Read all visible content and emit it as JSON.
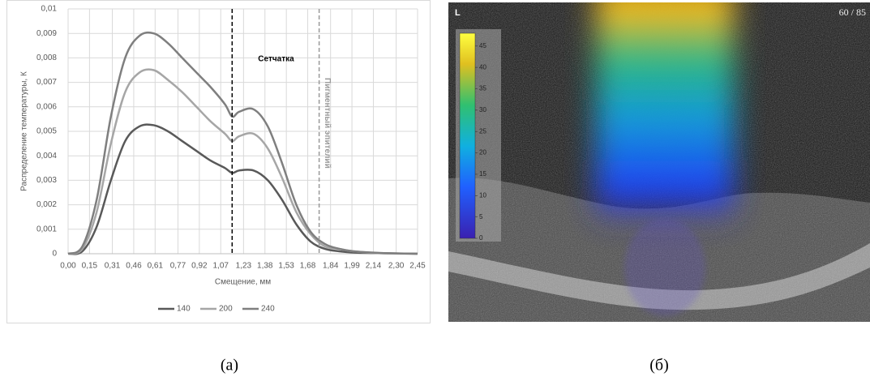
{
  "chart_data": {
    "type": "line",
    "y_label": "Распределение температуры, К",
    "x_label": "Смещение, мм",
    "x": [
      0,
      0.1,
      0.2,
      0.3,
      0.4,
      0.5,
      0.6,
      0.7,
      0.8,
      0.9,
      1.0,
      1.1,
      1.15,
      1.2,
      1.3,
      1.4,
      1.5,
      1.6,
      1.7,
      1.8,
      1.9,
      2.0,
      2.2,
      2.45
    ],
    "series": [
      {
        "name": "140",
        "color": "#595959",
        "values": [
          0,
          0.0001,
          0.0011,
          0.003,
          0.0046,
          0.0052,
          0.00525,
          0.005,
          0.0046,
          0.0042,
          0.0038,
          0.0035,
          0.0033,
          0.0034,
          0.0034,
          0.003,
          0.0022,
          0.0012,
          0.0005,
          0.0002,
          0.0001,
          5e-05,
          2e-05,
          0
        ]
      },
      {
        "name": "200",
        "color": "#a6a6a6",
        "values": [
          0,
          0.0002,
          0.0017,
          0.0045,
          0.0066,
          0.0074,
          0.0075,
          0.0071,
          0.0066,
          0.006,
          0.0054,
          0.0049,
          0.0046,
          0.0048,
          0.0049,
          0.0043,
          0.0031,
          0.0017,
          0.0008,
          0.0003,
          0.0002,
          0.0001,
          2e-05,
          0
        ]
      },
      {
        "name": "240",
        "color": "#7f7f7f",
        "values": [
          0,
          0.0003,
          0.0022,
          0.0056,
          0.008,
          0.0089,
          0.009,
          0.0086,
          0.008,
          0.0074,
          0.0068,
          0.0061,
          0.0056,
          0.0058,
          0.0059,
          0.0052,
          0.0037,
          0.002,
          0.0009,
          0.0004,
          0.0002,
          0.0001,
          3e-05,
          0
        ]
      }
    ],
    "xlim": [
      0,
      2.45
    ],
    "xticks": [
      {
        "value": 0,
        "label": "0,00"
      },
      {
        "value": 0.15,
        "label": "0,15"
      },
      {
        "value": 0.31,
        "label": "0,31"
      },
      {
        "value": 0.46,
        "label": "0,46"
      },
      {
        "value": 0.61,
        "label": "0,61"
      },
      {
        "value": 0.77,
        "label": "0,77"
      },
      {
        "value": 0.92,
        "label": "0,92"
      },
      {
        "value": 1.07,
        "label": "1,07"
      },
      {
        "value": 1.23,
        "label": "1,23"
      },
      {
        "value": 1.38,
        "label": "1,38"
      },
      {
        "value": 1.53,
        "label": "1,53"
      },
      {
        "value": 1.68,
        "label": "1,68"
      },
      {
        "value": 1.84,
        "label": "1,84"
      },
      {
        "value": 1.99,
        "label": "1,99"
      },
      {
        "value": 2.14,
        "label": "2,14"
      },
      {
        "value": 2.3,
        "label": "2,30"
      },
      {
        "value": 2.45,
        "label": "2,45"
      }
    ],
    "ylim": [
      0,
      0.01
    ],
    "yticks": [
      0,
      {
        "value": 0.001,
        "label": "0,001"
      },
      {
        "value": 0.002,
        "label": "0,002"
      },
      {
        "value": 0.003,
        "label": "0,003"
      },
      {
        "value": 0.004,
        "label": "0,004"
      },
      {
        "value": 0.005,
        "label": "0,005"
      },
      {
        "value": 0.006,
        "label": "0,006"
      },
      {
        "value": 0.007,
        "label": "0,007"
      },
      {
        "value": 0.008,
        "label": "0,008"
      },
      {
        "value": 0.009,
        "label": "0,009"
      },
      {
        "value": 0.01,
        "label": "0,01"
      }
    ],
    "grid": true,
    "legend": "bottom",
    "vlines": [
      {
        "x": 1.15,
        "color": "#000000",
        "label": "Сетчатка"
      },
      {
        "x": 1.76,
        "color": "#999999",
        "label": "Пигментный эпителий"
      }
    ]
  },
  "image": {
    "corner_label": "L",
    "frame": "60 / 85",
    "colorbar": {
      "lim": [
        0,
        48
      ],
      "ticks": [
        0,
        5,
        10,
        15,
        20,
        25,
        30,
        35,
        40,
        45
      ]
    }
  },
  "captions": [
    "(а)",
    "(б)"
  ]
}
